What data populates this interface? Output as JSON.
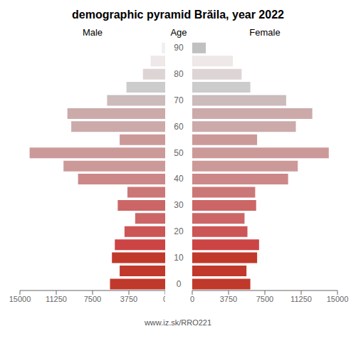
{
  "chart_data": {
    "type": "bar",
    "orientation": "horizontal",
    "title": "demographic pyramid Brăila, year 2022",
    "ylabel": "Age",
    "annotations": [
      "www.iz.sk/RRO221"
    ],
    "categories": [
      "0",
      null,
      "10",
      null,
      "20",
      null,
      "30",
      null,
      "40",
      null,
      "50",
      null,
      "60",
      null,
      "70",
      null,
      "80",
      null,
      "90"
    ],
    "series": [
      {
        "name": "Male",
        "values": [
          5700,
          4700,
          5500,
          5200,
          4200,
          3100,
          4900,
          3900,
          9000,
          10500,
          14000,
          4700,
          9700,
          10100,
          6000,
          4000,
          2300,
          1500,
          350
        ],
        "colors": [
          "#c0392b",
          "#c0392b",
          "#c0392b",
          "#cc4444",
          "#cc5555",
          "#cc6666",
          "#cc6666",
          "#cc7777",
          "#cc8888",
          "#cc9999",
          "#cc9999",
          "#cc9999",
          "#ccaaaa",
          "#ccaaaa",
          "#ccbbbb",
          "#cccccc",
          "#ddd5d5",
          "#eee8e8",
          "#f0f0f0"
        ]
      },
      {
        "name": "Female",
        "values": [
          6000,
          5600,
          6700,
          6900,
          5700,
          5400,
          6600,
          6500,
          9900,
          10900,
          14100,
          6700,
          10700,
          12400,
          9700,
          6000,
          5100,
          4200,
          1400
        ],
        "colors": [
          "#c0392b",
          "#c0392b",
          "#c0392b",
          "#cc4444",
          "#cc5555",
          "#cc6666",
          "#cc6666",
          "#cc7777",
          "#cc8888",
          "#cc9999",
          "#cc9999",
          "#cc9999",
          "#ccaaaa",
          "#ccaaaa",
          "#ccbbbb",
          "#cccccc",
          "#ddd5d5",
          "#eee8e8",
          "#c0c0c0"
        ]
      }
    ],
    "xlim": [
      0,
      15000
    ],
    "xticks": [
      0,
      3750,
      7500,
      11250,
      15000
    ],
    "grid": false
  }
}
